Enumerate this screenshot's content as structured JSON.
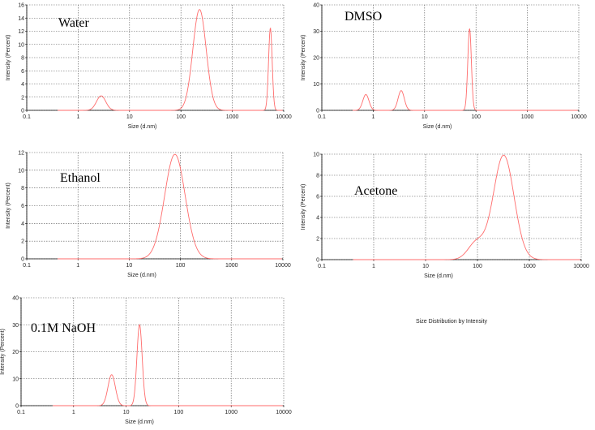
{
  "caption": "Size Distribution by Intensity",
  "style": {
    "curve_color": "#ff6b6b",
    "grid_color": "#555555",
    "axis_color": "#000000"
  },
  "chart_data": [
    {
      "type": "line",
      "label": "Water",
      "xlabel": "Size (d.nm)",
      "ylabel": "Intensity (Percent)",
      "xscale": "log",
      "xlim": [
        0.1,
        10000
      ],
      "ylim": [
        0,
        16
      ],
      "x_ticks": [
        "0.1",
        "1",
        "10",
        "100",
        "1000",
        "10000"
      ],
      "y_ticks": [
        0,
        2,
        4,
        6,
        8,
        10,
        12,
        14,
        16
      ],
      "peaks": [
        {
          "center": 2.8,
          "height": 2.2,
          "width": 0.09
        },
        {
          "center": 230,
          "height": 15.3,
          "width": 0.13
        },
        {
          "center": 5500,
          "height": 12.5,
          "width": 0.035
        }
      ]
    },
    {
      "type": "line",
      "label": "DMSO",
      "xlabel": "Size (d.nm)",
      "ylabel": "Intensity (Percent)",
      "xscale": "log",
      "xlim": [
        0.1,
        10000
      ],
      "ylim": [
        0,
        40
      ],
      "x_ticks": [
        "0.1",
        "1",
        "10",
        "100",
        "1000",
        "10000"
      ],
      "y_ticks": [
        0,
        10,
        20,
        30,
        40
      ],
      "peaks": [
        {
          "center": 0.72,
          "height": 6,
          "width": 0.06
        },
        {
          "center": 3.5,
          "height": 7.5,
          "width": 0.06
        },
        {
          "center": 75,
          "height": 31,
          "width": 0.035
        }
      ]
    },
    {
      "type": "line",
      "label": "Ethanol",
      "xlabel": "Size (d.nm)",
      "ylabel": "Intensity (Percent)",
      "xscale": "log",
      "xlim": [
        0.1,
        10000
      ],
      "ylim": [
        0,
        12
      ],
      "x_ticks": [
        "0.1",
        "1",
        "10",
        "100",
        "1000",
        "10000"
      ],
      "y_ticks": [
        0,
        2,
        4,
        6,
        8,
        10,
        12
      ],
      "peaks": [
        {
          "center": 78,
          "height": 11.8,
          "width": 0.2
        }
      ]
    },
    {
      "type": "line",
      "label": "Acetone",
      "xlabel": "Size (d.nm)",
      "ylabel": "Intensity (Percent)",
      "xscale": "log",
      "xlim": [
        0.1,
        10000
      ],
      "ylim": [
        0,
        10
      ],
      "x_ticks": [
        "0.1",
        "1",
        "10",
        "100",
        "1000",
        "10000"
      ],
      "y_ticks": [
        0,
        2,
        4,
        6,
        8,
        10
      ],
      "peaks": [
        {
          "center": 320,
          "height": 9.9,
          "width": 0.2
        },
        {
          "center": 95,
          "height": 1.6,
          "width": 0.16
        }
      ]
    },
    {
      "type": "line",
      "label": "0.1M NaOH",
      "xlabel": "Size (d.nm)",
      "ylabel": "Intensity (Percent)",
      "xscale": "log",
      "xlim": [
        0.1,
        10000
      ],
      "ylim": [
        0,
        40
      ],
      "x_ticks": [
        "0.1",
        "1",
        "10",
        "100",
        "1000",
        "10000"
      ],
      "y_ticks": [
        0,
        10,
        20,
        30,
        40
      ],
      "peaks": [
        {
          "center": 5.3,
          "height": 11.5,
          "width": 0.07
        },
        {
          "center": 18,
          "height": 30,
          "width": 0.05
        }
      ]
    }
  ]
}
